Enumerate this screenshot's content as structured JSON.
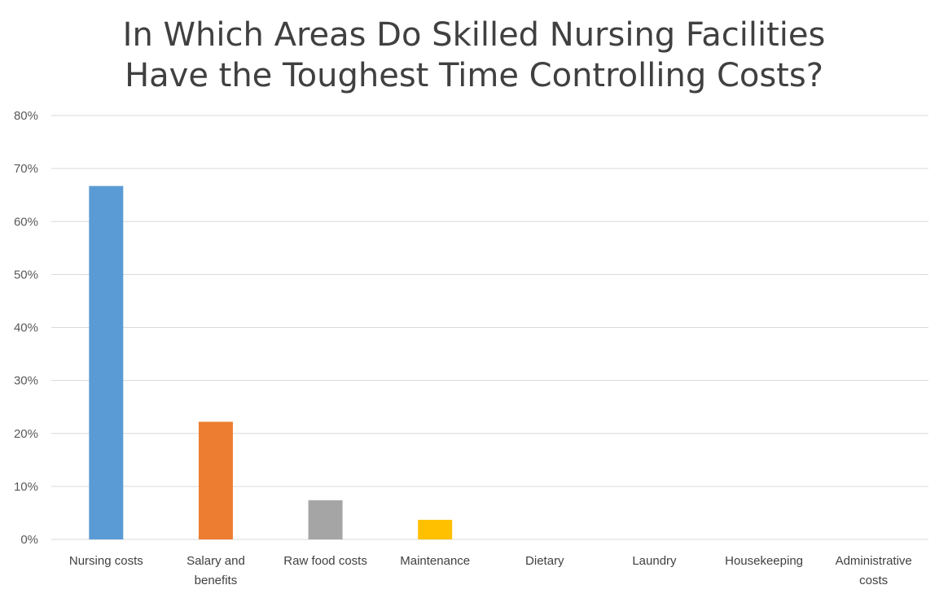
{
  "chart_data": {
    "type": "bar",
    "title_lines": [
      "In Which Areas Do Skilled Nursing Facilities",
      "Have the Toughest Time Controlling Costs?"
    ],
    "categories": [
      [
        "Nursing costs"
      ],
      [
        "Salary and",
        "benefits"
      ],
      [
        "Raw food costs"
      ],
      [
        "Maintenance"
      ],
      [
        "Dietary"
      ],
      [
        "Laundry"
      ],
      [
        "Housekeeping"
      ],
      [
        "Administrative",
        "costs"
      ]
    ],
    "values": [
      66.7,
      22.2,
      7.4,
      3.7,
      0,
      0,
      0,
      0
    ],
    "colors": [
      "#5B9BD5",
      "#ED7D31",
      "#A5A5A5",
      "#FFC000",
      "#4472C4",
      "#70AD47",
      "#264478",
      "#9E480E"
    ],
    "ylim": [
      0,
      80
    ],
    "yticks": [
      0,
      10,
      20,
      30,
      40,
      50,
      60,
      70,
      80
    ],
    "ytick_format": "%",
    "xlabel": "",
    "ylabel": "",
    "grid": true,
    "legend": "none"
  }
}
